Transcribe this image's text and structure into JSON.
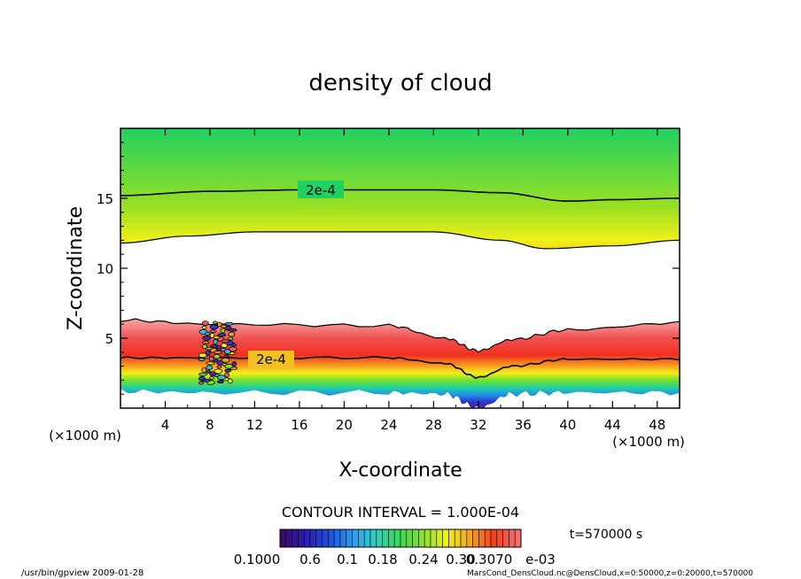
{
  "chart_data": {
    "type": "heatmap",
    "title": "density of cloud",
    "xlabel": "X-coordinate",
    "ylabel": "Z-coordinate",
    "x_unit_left": "(×1000 m)",
    "x_unit_right": "(×1000 m)",
    "xlim": [
      0,
      50
    ],
    "ylim": [
      0,
      20
    ],
    "x_ticks": [
      4,
      8,
      12,
      16,
      20,
      24,
      28,
      32,
      36,
      40,
      44,
      48
    ],
    "x_ticklabels": [
      "4",
      "8",
      "12",
      "16",
      "20",
      "24",
      "28",
      "32",
      "36",
      "40",
      "44",
      "48"
    ],
    "y_ticks": [
      5,
      10,
      15
    ],
    "y_ticklabels": [
      "5",
      "10",
      "15"
    ],
    "contour_interval_text": "CONTOUR INTERVAL = 1.000E-04",
    "contour_label_upper": "2e-4",
    "contour_label_lower": "2e-4",
    "time_label": "t=570000 s",
    "colorbar_labels": [
      "0.1000",
      "0.6",
      "0.1",
      "0.18",
      "0.24",
      "0.30",
      "0.3070",
      "e-03"
    ],
    "colorbar_colors": [
      "#3a0a6e",
      "#2a1eb0",
      "#2050e0",
      "#2aa0f0",
      "#30d0c0",
      "#40d850",
      "#90e030",
      "#f0f020",
      "#f0a020",
      "#f04020",
      "#f07070"
    ],
    "upper_layer": {
      "top_contour_z": [
        [
          0,
          15.2
        ],
        [
          8,
          15.5
        ],
        [
          16,
          15.6
        ],
        [
          28,
          15.6
        ],
        [
          34,
          15.4
        ],
        [
          40,
          14.8
        ],
        [
          44,
          14.9
        ],
        [
          50,
          15.0
        ]
      ],
      "bottom_contour_z": [
        [
          0,
          11.8
        ],
        [
          6,
          12.3
        ],
        [
          12,
          12.6
        ],
        [
          28,
          12.6
        ],
        [
          34,
          12.0
        ],
        [
          38,
          11.4
        ],
        [
          44,
          11.6
        ],
        [
          50,
          12.0
        ]
      ]
    },
    "lower_layer": {
      "top_z": [
        [
          0,
          6.3
        ],
        [
          8,
          6.0
        ],
        [
          24,
          5.9
        ],
        [
          29,
          5.0
        ],
        [
          32,
          4.1
        ],
        [
          35,
          4.9
        ],
        [
          40,
          5.6
        ],
        [
          50,
          6.1
        ]
      ],
      "contour_z": [
        [
          0,
          3.6
        ],
        [
          8,
          3.6
        ],
        [
          24,
          3.6
        ],
        [
          29,
          3.2
        ],
        [
          32,
          2.2
        ],
        [
          35,
          3.0
        ],
        [
          40,
          3.5
        ],
        [
          50,
          3.5
        ]
      ],
      "base_z": [
        [
          0,
          1.2
        ],
        [
          8,
          1.1
        ],
        [
          24,
          1.1
        ],
        [
          29,
          1.0
        ],
        [
          32,
          0.0
        ],
        [
          35,
          1.0
        ],
        [
          40,
          1.1
        ],
        [
          50,
          1.1
        ]
      ]
    }
  },
  "footer": {
    "left": "/usr/bin/gpview  2009-01-28",
    "right": "MarsCond_DensCloud.nc@DensCloud,x=0:50000,z=0:20000,t=570000"
  }
}
